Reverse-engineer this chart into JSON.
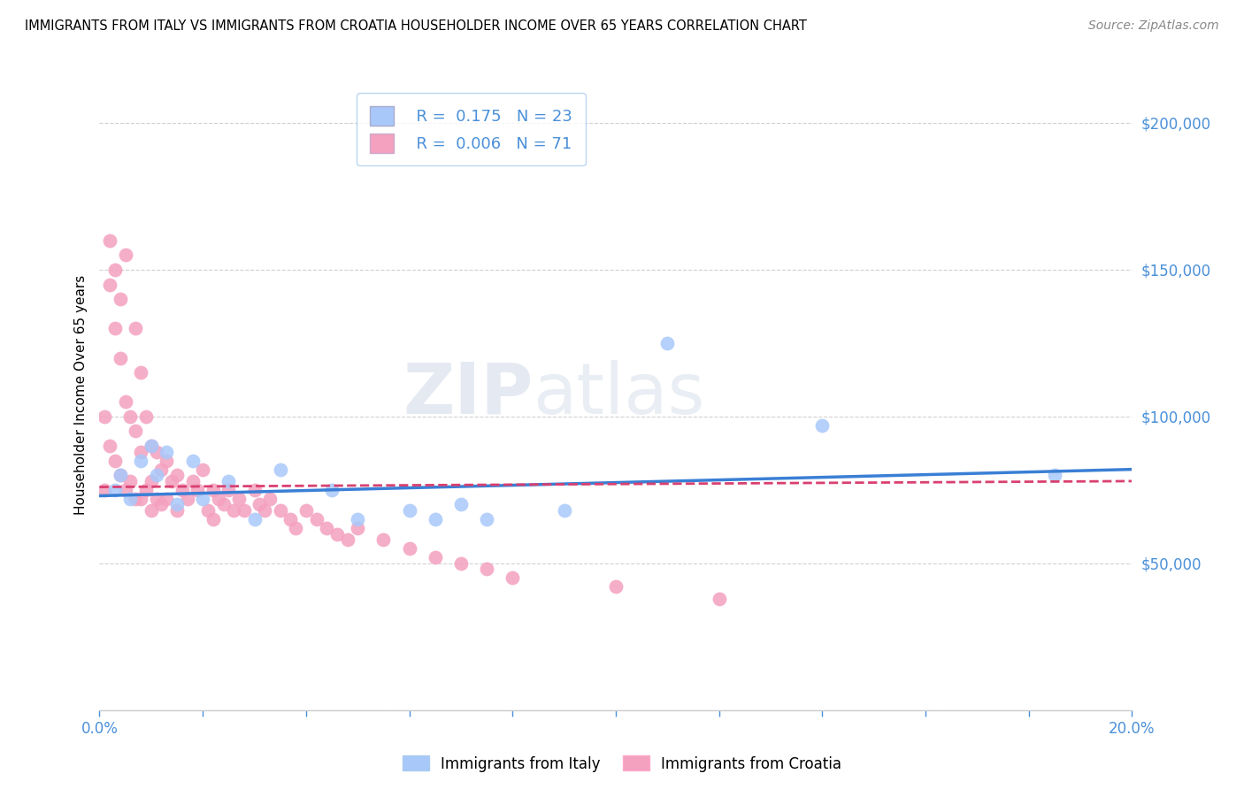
{
  "title": "IMMIGRANTS FROM ITALY VS IMMIGRANTS FROM CROATIA HOUSEHOLDER INCOME OVER 65 YEARS CORRELATION CHART",
  "source": "Source: ZipAtlas.com",
  "ylabel": "Householder Income Over 65 years",
  "xlim": [
    0.0,
    0.2
  ],
  "ylim": [
    0,
    215000
  ],
  "legend_italy_R": "0.175",
  "legend_italy_N": "23",
  "legend_croatia_R": "0.006",
  "legend_croatia_N": "71",
  "italy_color": "#a8c8fa",
  "croatia_color": "#f4a0bf",
  "italy_line_color": "#3a7fd5",
  "croatia_line_color": "#d94070",
  "watermark_zip": "ZIP",
  "watermark_atlas": "atlas",
  "italy_x": [
    0.003,
    0.004,
    0.006,
    0.008,
    0.01,
    0.011,
    0.013,
    0.015,
    0.018,
    0.02,
    0.025,
    0.03,
    0.035,
    0.045,
    0.05,
    0.06,
    0.065,
    0.07,
    0.075,
    0.09,
    0.11,
    0.14,
    0.185
  ],
  "italy_y": [
    75000,
    80000,
    72000,
    85000,
    90000,
    80000,
    88000,
    70000,
    85000,
    72000,
    78000,
    65000,
    82000,
    75000,
    65000,
    68000,
    65000,
    70000,
    65000,
    68000,
    125000,
    97000,
    80000
  ],
  "croatia_x": [
    0.001,
    0.001,
    0.002,
    0.002,
    0.002,
    0.003,
    0.003,
    0.003,
    0.004,
    0.004,
    0.004,
    0.005,
    0.005,
    0.005,
    0.006,
    0.006,
    0.007,
    0.007,
    0.007,
    0.008,
    0.008,
    0.008,
    0.009,
    0.009,
    0.01,
    0.01,
    0.01,
    0.011,
    0.011,
    0.012,
    0.012,
    0.013,
    0.013,
    0.014,
    0.015,
    0.015,
    0.016,
    0.017,
    0.018,
    0.019,
    0.02,
    0.021,
    0.022,
    0.022,
    0.023,
    0.024,
    0.025,
    0.026,
    0.027,
    0.028,
    0.03,
    0.031,
    0.032,
    0.033,
    0.035,
    0.037,
    0.038,
    0.04,
    0.042,
    0.044,
    0.046,
    0.048,
    0.05,
    0.055,
    0.06,
    0.065,
    0.07,
    0.075,
    0.08,
    0.1,
    0.12
  ],
  "croatia_y": [
    100000,
    75000,
    160000,
    145000,
    90000,
    150000,
    130000,
    85000,
    140000,
    120000,
    80000,
    155000,
    105000,
    75000,
    100000,
    78000,
    130000,
    95000,
    72000,
    115000,
    88000,
    72000,
    100000,
    75000,
    90000,
    78000,
    68000,
    88000,
    72000,
    82000,
    70000,
    85000,
    72000,
    78000,
    80000,
    68000,
    75000,
    72000,
    78000,
    75000,
    82000,
    68000,
    75000,
    65000,
    72000,
    70000,
    75000,
    68000,
    72000,
    68000,
    75000,
    70000,
    68000,
    72000,
    68000,
    65000,
    62000,
    68000,
    65000,
    62000,
    60000,
    58000,
    62000,
    58000,
    55000,
    52000,
    50000,
    48000,
    45000,
    42000,
    38000
  ]
}
